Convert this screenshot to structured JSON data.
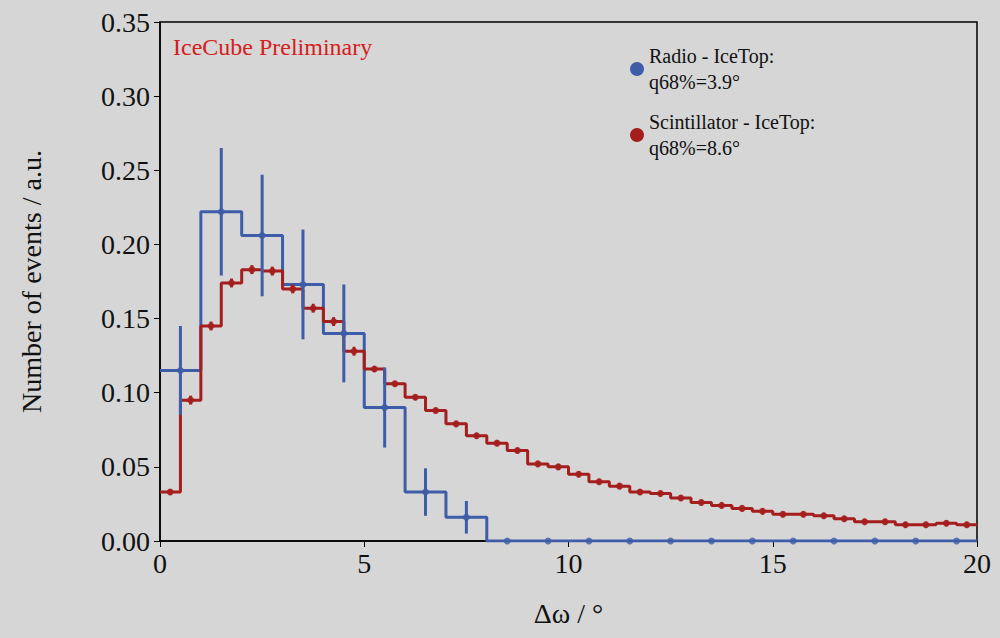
{
  "chart_data": {
    "type": "histogram",
    "annotation": "IceCube Preliminary",
    "xlabel": "Δω / °",
    "ylabel": "Number of events / a.u.",
    "xlim": [
      0,
      20
    ],
    "xticks": [
      0,
      5,
      10,
      15,
      20
    ],
    "ylim": [
      0,
      0.35
    ],
    "yticks": [
      {
        "value": 0,
        "label": "0.00"
      },
      {
        "value": 0.05,
        "label": "0.05"
      },
      {
        "value": 0.1,
        "label": "0.10"
      },
      {
        "value": 0.15,
        "label": "0.15"
      },
      {
        "value": 0.2,
        "label": "0.20"
      },
      {
        "value": 0.25,
        "label": "0.25"
      },
      {
        "value": 0.3,
        "label": "0.30"
      },
      {
        "value": 0.35,
        "label": "0.35"
      }
    ],
    "grid": false,
    "legend": "upper right",
    "series": [
      {
        "name": "Radio - IceTop:\nq68%=3.9°",
        "color": "#3d5da8",
        "marker": "circle",
        "line_style": "step",
        "bins": [
          0,
          1,
          2,
          3,
          4,
          5,
          6,
          7,
          8,
          9,
          10,
          11,
          12,
          13,
          14,
          15,
          16,
          17,
          18,
          19,
          20
        ],
        "values": [
          0.115,
          0.222,
          0.206,
          0.173,
          0.14,
          0.09,
          0.033,
          0.016,
          0,
          0,
          0,
          0,
          0,
          0,
          0,
          0,
          0,
          0,
          0,
          0
        ],
        "errors": [
          0.03,
          0.043,
          0.041,
          0.037,
          0.033,
          0.027,
          0.016,
          0.011,
          0,
          0,
          0,
          0,
          0,
          0,
          0,
          0,
          0,
          0,
          0,
          0
        ]
      },
      {
        "name": "Scintillator - IceTop:\nq68%=8.6°",
        "color": "#a51e1e",
        "marker": "circle",
        "line_style": "step",
        "bins": [
          0,
          0.5,
          1,
          1.5,
          2,
          2.5,
          3,
          3.5,
          4,
          4.5,
          5,
          5.5,
          6,
          6.5,
          7,
          7.5,
          8,
          8.5,
          9,
          9.5,
          10,
          10.5,
          11,
          11.5,
          12,
          12.5,
          13,
          13.5,
          14,
          14.5,
          15,
          15.5,
          16,
          16.5,
          17,
          17.5,
          18,
          18.5,
          19,
          19.5,
          20
        ],
        "values": [
          0.033,
          0.095,
          0.145,
          0.174,
          0.183,
          0.182,
          0.17,
          0.157,
          0.148,
          0.128,
          0.116,
          0.106,
          0.097,
          0.088,
          0.079,
          0.071,
          0.066,
          0.061,
          0.052,
          0.05,
          0.045,
          0.04,
          0.037,
          0.033,
          0.032,
          0.029,
          0.026,
          0.024,
          0.022,
          0.02,
          0.018,
          0.018,
          0.017,
          0.015,
          0.013,
          0.013,
          0.011,
          0.011,
          0.012,
          0.011
        ],
        "errors": [
          0.002,
          0.003,
          0.003,
          0.003,
          0.003,
          0.003,
          0.003,
          0.003,
          0.003,
          0.003,
          0.002,
          0.002,
          0.002,
          0.002,
          0.002,
          0.002,
          0.002,
          0.002,
          0.002,
          0.002,
          0.002,
          0.002,
          0.002,
          0.002,
          0.002,
          0.002,
          0.002,
          0.002,
          0.002,
          0.002,
          0.002,
          0.002,
          0.002,
          0.002,
          0.002,
          0.002,
          0.002,
          0.002,
          0.002,
          0.002
        ]
      }
    ]
  }
}
